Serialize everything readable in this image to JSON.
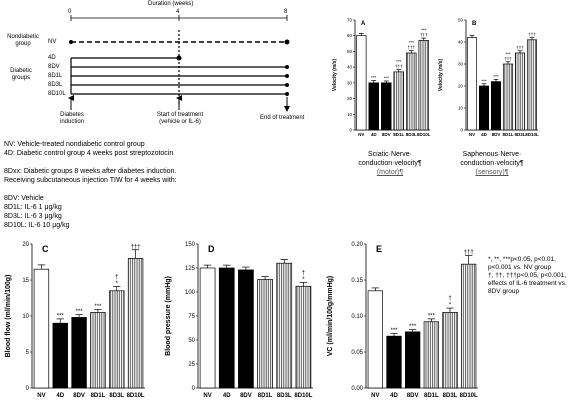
{
  "timeline": {
    "title": "Duration (weeks)",
    "ticks": [
      "0",
      "4",
      "8"
    ],
    "nondiabetic_label": "Nondiabetic group",
    "nondiabetic_groups": [
      "NV"
    ],
    "diabetic_label": "Diabetic groups",
    "diabetic_groups": [
      "4D",
      "8DV",
      "8D1L",
      "8D3L",
      "8D10L"
    ],
    "event_induction": "Diabetes induction",
    "event_treatment": "Start of treatment (vehicle or IL-6)",
    "event_end": "End of treatment"
  },
  "legend": {
    "line1": "NV: Vehicle-treated nondiabetic control group",
    "line2": "4D: Diabetic control group 4 weeks post streptozotocin",
    "line3": "8Dxx: Diabetic groups 8 weeks after diabetes induction.",
    "line4": "Receiving subcutaneous injection TIW for 4 weeks with:",
    "line5": "8DV: Vehicle",
    "line6": "8D1L: IL-6 1 μg/kg",
    "line7": "8D3L: IL-6 3 μg/kg",
    "line8": "8D10L: IL-6 10 μg/kg"
  },
  "significance_note": {
    "line1": "*, **, ***p<0.05, p<0.01,",
    "line2": "p<0.001 vs. NV group",
    "line3": "†, ††, †††p<0.05, p<0.001,",
    "line4": "effects of IL-6 treatment vs.",
    "line5": "8DV group"
  },
  "captions": {
    "sciatic_line1": "Sciatic·Nerve·",
    "sciatic_line2": "conduction·velocity¶",
    "sciatic_line3": "(motor)¶",
    "saphenous_line1": "Saphenous·Nerve·",
    "saphenous_line2": "conduction·velocity¶",
    "saphenous_line3": "(sensory)¶"
  },
  "chart_data": [
    {
      "id": "A",
      "panel_letter": "A",
      "type": "bar",
      "ylabel": "Velocity (m/s)",
      "ylim": [
        0,
        70
      ],
      "yticks": [
        0,
        10,
        20,
        30,
        40,
        50,
        60,
        70
      ],
      "categories": [
        "NV",
        "4D",
        "8DV",
        "8D1L",
        "8D3L",
        "8D10L"
      ],
      "values": [
        60,
        30,
        30,
        37,
        49,
        57
      ],
      "errors": [
        1.5,
        1.5,
        1.2,
        1.5,
        1.5,
        1.5
      ],
      "labels": [
        "",
        "***",
        "***",
        "***\n†††",
        "***\n†††",
        "***\n†††"
      ],
      "fills": [
        "white",
        "black",
        "black",
        "stripe",
        "stripe",
        "stripe"
      ]
    },
    {
      "id": "B",
      "panel_letter": "B",
      "type": "bar",
      "ylabel": "Velocity (m/s)",
      "ylim": [
        0,
        50
      ],
      "yticks": [
        0,
        10,
        20,
        30,
        40,
        50
      ],
      "categories": [
        "NV",
        "4D",
        "8DV",
        "8D1L",
        "8D3L",
        "8D10L"
      ],
      "values": [
        42,
        20,
        22,
        30,
        35,
        41
      ],
      "errors": [
        1,
        1,
        1,
        1,
        1,
        1
      ],
      "labels": [
        "",
        "***",
        "***",
        "***\n†††",
        "†††",
        "†††"
      ],
      "fills": [
        "white",
        "black",
        "black",
        "stripe",
        "stripe",
        "stripe"
      ]
    },
    {
      "id": "C",
      "panel_letter": "C",
      "type": "bar",
      "ylabel": "Blood flow (ml/min/100g)",
      "ylim": [
        0,
        20
      ],
      "yticks": [
        0,
        5,
        10,
        15,
        20
      ],
      "categories": [
        "NV",
        "4D",
        "8DV",
        "8D1L",
        "8D3L",
        "8D10L"
      ],
      "values": [
        16.5,
        9,
        9.8,
        10.5,
        13.5,
        18
      ],
      "errors": [
        0.6,
        0.6,
        0.4,
        0.4,
        0.6,
        1.2
      ],
      "labels": [
        "",
        "***",
        "***",
        "***",
        "†\n*",
        "†††"
      ],
      "fills": [
        "white",
        "black",
        "black",
        "stripe",
        "stripe",
        "stripe"
      ]
    },
    {
      "id": "D",
      "panel_letter": "D",
      "type": "bar",
      "ylabel": "Blood pressure (mmHg)",
      "ylim": [
        0,
        150
      ],
      "yticks": [
        0,
        25,
        50,
        75,
        100,
        125,
        150
      ],
      "categories": [
        "NV",
        "4D",
        "8DV",
        "8D1L",
        "8D3L",
        "8D10L"
      ],
      "values": [
        125,
        125,
        123,
        113,
        130,
        106
      ],
      "errors": [
        3,
        3,
        3,
        3,
        4,
        4
      ],
      "labels": [
        "",
        "",
        "",
        "",
        "",
        "†\n*"
      ],
      "fills": [
        "white",
        "black",
        "black",
        "stripe",
        "stripe",
        "stripe"
      ]
    },
    {
      "id": "E",
      "panel_letter": "E",
      "type": "bar",
      "ylabel": "VC (ml/min/100g/mmHg)",
      "ylim": [
        0,
        0.2
      ],
      "yticks": [
        0,
        0.05,
        0.1,
        0.15,
        0.2
      ],
      "ytick_labels": [
        "0.00",
        "0.05",
        "0.10",
        "0.15",
        "0.20"
      ],
      "categories": [
        "NV",
        "4D",
        "8DV",
        "8D1L",
        "8D3L",
        "8D10L"
      ],
      "values": [
        0.135,
        0.072,
        0.078,
        0.092,
        0.105,
        0.172
      ],
      "errors": [
        0.004,
        0.004,
        0.003,
        0.004,
        0.006,
        0.012
      ],
      "labels": [
        "",
        "***",
        "***",
        "***",
        "†\n*",
        "†††"
      ],
      "fills": [
        "white",
        "black",
        "black",
        "stripe",
        "stripe",
        "stripe"
      ]
    }
  ]
}
